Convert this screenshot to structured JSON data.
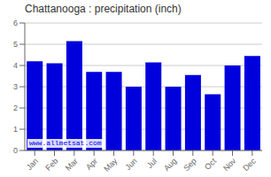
{
  "chart_data": {
    "type": "bar",
    "title": "Chattanooga : precipitation (inch)",
    "categories": [
      "Jan",
      "Feb",
      "Mar",
      "Apr",
      "May",
      "Jun",
      "Jul",
      "Aug",
      "Sep",
      "Oct",
      "Nov",
      "Dec"
    ],
    "values": [
      4.2,
      4.1,
      5.15,
      3.7,
      3.7,
      3.0,
      4.15,
      3.0,
      3.55,
      2.65,
      4.0,
      4.45
    ],
    "color": "#0000DD",
    "ylim": [
      0,
      6
    ],
    "yticks": [
      0,
      1,
      2,
      3,
      4,
      5,
      6
    ],
    "grid": true,
    "annotations": [
      "www.allmetsat.com"
    ]
  }
}
